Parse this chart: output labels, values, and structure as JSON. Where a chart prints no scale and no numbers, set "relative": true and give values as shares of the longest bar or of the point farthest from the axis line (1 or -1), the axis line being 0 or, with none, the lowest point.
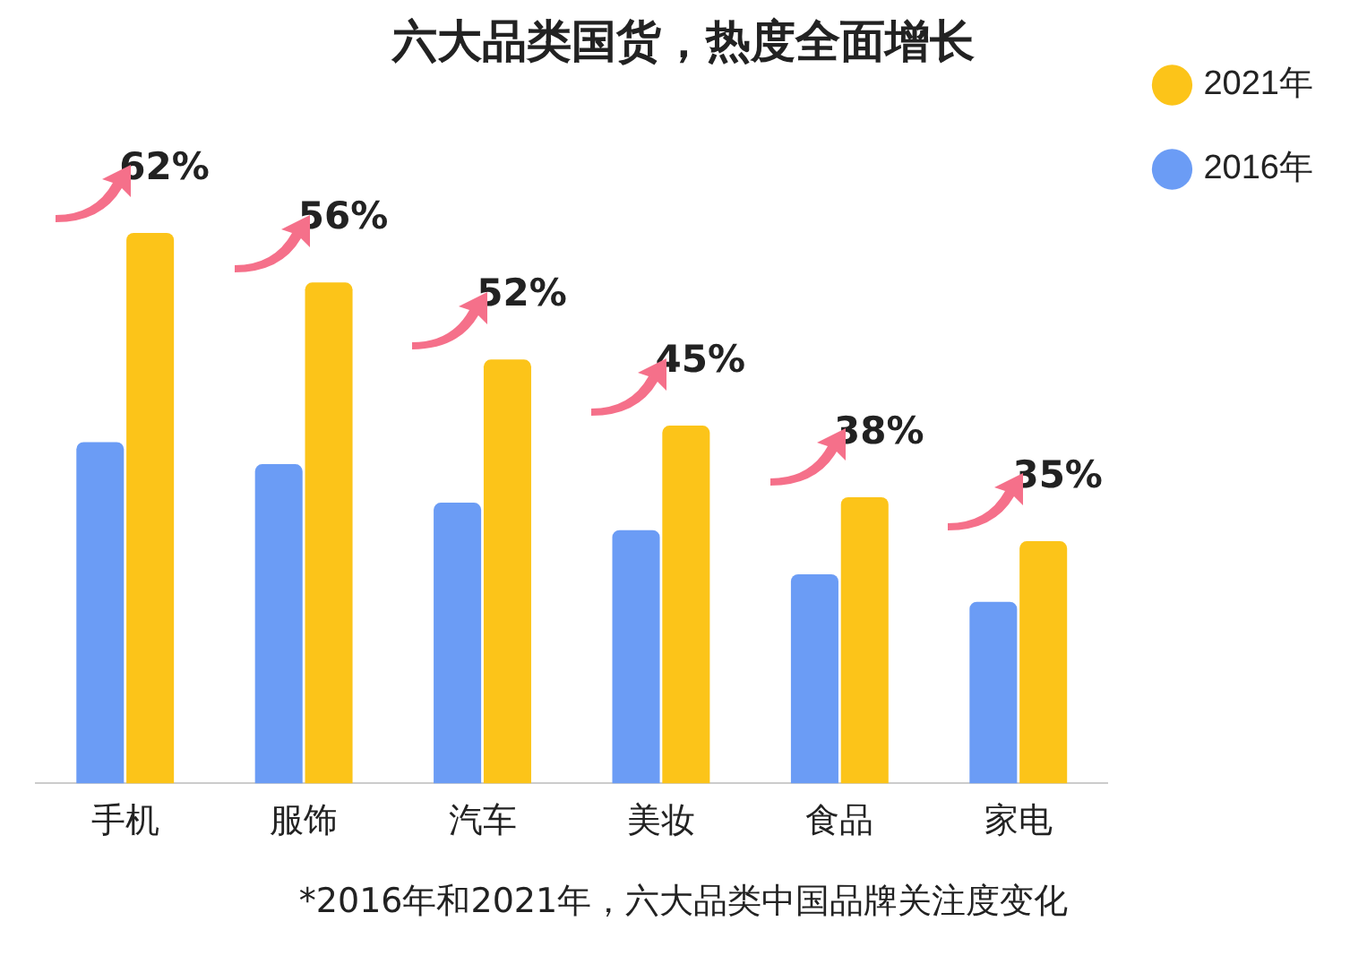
{
  "chart_data": {
    "type": "bar",
    "title": "六大品类国货，热度全面增长",
    "relative": true,
    "categories": [
      "手机",
      "服饰",
      "汽车",
      "美妆",
      "食品",
      "家电"
    ],
    "series": [
      {
        "name": "2016年",
        "color": "#6b9cf5",
        "values": [
          0.62,
          0.58,
          0.51,
          0.46,
          0.38,
          0.33
        ]
      },
      {
        "name": "2021年",
        "color": "#fcc419",
        "values": [
          1,
          0.91,
          0.77,
          0.65,
          0.52,
          0.44
        ]
      }
    ],
    "legend": "top right",
    "grid": false,
    "annotations": [
      "62%",
      "56%",
      "52%",
      "45%",
      "38%",
      "35%",
      "*2016年和2021年，六大品类中国品牌关注度变化"
    ]
  }
}
